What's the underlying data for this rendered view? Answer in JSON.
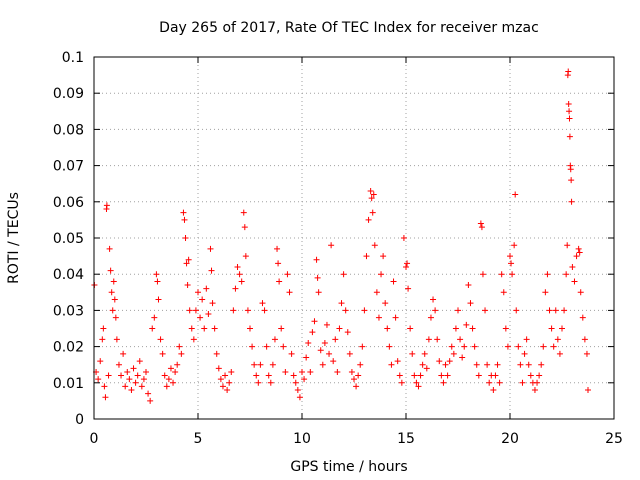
{
  "chart_data": {
    "type": "scatter",
    "title": "Day 265 of 2017, Rate Of TEC Index for receiver mzac",
    "xlabel": "GPS time / hours",
    "ylabel": "ROTI / TECUs",
    "xlim": [
      0,
      25
    ],
    "ylim": [
      0,
      0.1
    ],
    "xticks": [
      0,
      5,
      10,
      15,
      20,
      25
    ],
    "xtick_labels": [
      "0",
      "5",
      "10",
      "15",
      "20",
      "25"
    ],
    "yticks": [
      0,
      0.01,
      0.02,
      0.03,
      0.04,
      0.05,
      0.06,
      0.07,
      0.08,
      0.09,
      0.1
    ],
    "ytick_labels": [
      "0",
      "0.01",
      "0.02",
      "0.03",
      "0.04",
      "0.05",
      "0.06",
      "0.07",
      "0.08",
      "0.09",
      "0.1"
    ],
    "grid": true,
    "marker": "+",
    "color": "#ff0000",
    "series": [
      {
        "points": [
          [
            0.02,
            0.037
          ],
          [
            0.1,
            0.013
          ],
          [
            0.2,
            0.011
          ],
          [
            0.3,
            0.016
          ],
          [
            0.4,
            0.022
          ],
          [
            0.45,
            0.025
          ],
          [
            0.5,
            0.009
          ],
          [
            0.55,
            0.006
          ],
          [
            0.6,
            0.058
          ],
          [
            0.62,
            0.059
          ],
          [
            0.7,
            0.012
          ],
          [
            0.75,
            0.047
          ],
          [
            0.8,
            0.041
          ],
          [
            0.85,
            0.035
          ],
          [
            0.9,
            0.03
          ],
          [
            0.95,
            0.038
          ],
          [
            1.0,
            0.033
          ],
          [
            1.05,
            0.028
          ],
          [
            1.1,
            0.022
          ],
          [
            1.2,
            0.015
          ],
          [
            1.3,
            0.012
          ],
          [
            1.4,
            0.018
          ],
          [
            1.5,
            0.009
          ],
          [
            1.6,
            0.013
          ],
          [
            1.7,
            0.011
          ],
          [
            1.8,
            0.008
          ],
          [
            1.9,
            0.014
          ],
          [
            2.0,
            0.01
          ],
          [
            2.1,
            0.012
          ],
          [
            2.2,
            0.016
          ],
          [
            2.3,
            0.009
          ],
          [
            2.4,
            0.011
          ],
          [
            2.5,
            0.013
          ],
          [
            2.6,
            0.007
          ],
          [
            2.7,
            0.005
          ],
          [
            2.8,
            0.025
          ],
          [
            2.9,
            0.028
          ],
          [
            3.0,
            0.04
          ],
          [
            3.05,
            0.038
          ],
          [
            3.1,
            0.033
          ],
          [
            3.2,
            0.022
          ],
          [
            3.3,
            0.018
          ],
          [
            3.4,
            0.012
          ],
          [
            3.5,
            0.009
          ],
          [
            3.6,
            0.011
          ],
          [
            3.7,
            0.014
          ],
          [
            3.8,
            0.01
          ],
          [
            3.9,
            0.013
          ],
          [
            4.0,
            0.015
          ],
          [
            4.1,
            0.02
          ],
          [
            4.2,
            0.018
          ],
          [
            4.3,
            0.057
          ],
          [
            4.35,
            0.055
          ],
          [
            4.4,
            0.05
          ],
          [
            4.45,
            0.043
          ],
          [
            4.5,
            0.037
          ],
          [
            4.55,
            0.044
          ],
          [
            4.6,
            0.03
          ],
          [
            4.7,
            0.025
          ],
          [
            4.8,
            0.022
          ],
          [
            4.9,
            0.03
          ],
          [
            5.0,
            0.035
          ],
          [
            5.1,
            0.028
          ],
          [
            5.2,
            0.033
          ],
          [
            5.3,
            0.025
          ],
          [
            5.4,
            0.036
          ],
          [
            5.5,
            0.029
          ],
          [
            5.6,
            0.047
          ],
          [
            5.65,
            0.041
          ],
          [
            5.7,
            0.032
          ],
          [
            5.8,
            0.025
          ],
          [
            5.9,
            0.018
          ],
          [
            6.0,
            0.014
          ],
          [
            6.1,
            0.011
          ],
          [
            6.2,
            0.009
          ],
          [
            6.3,
            0.012
          ],
          [
            6.4,
            0.008
          ],
          [
            6.5,
            0.01
          ],
          [
            6.6,
            0.013
          ],
          [
            6.7,
            0.03
          ],
          [
            6.8,
            0.036
          ],
          [
            6.9,
            0.042
          ],
          [
            7.0,
            0.04
          ],
          [
            7.1,
            0.038
          ],
          [
            7.2,
            0.057
          ],
          [
            7.25,
            0.053
          ],
          [
            7.3,
            0.045
          ],
          [
            7.4,
            0.03
          ],
          [
            7.5,
            0.025
          ],
          [
            7.6,
            0.02
          ],
          [
            7.7,
            0.015
          ],
          [
            7.8,
            0.012
          ],
          [
            7.9,
            0.01
          ],
          [
            8.0,
            0.015
          ],
          [
            8.1,
            0.032
          ],
          [
            8.2,
            0.03
          ],
          [
            8.3,
            0.02
          ],
          [
            8.4,
            0.012
          ],
          [
            8.5,
            0.01
          ],
          [
            8.6,
            0.015
          ],
          [
            8.7,
            0.022
          ],
          [
            8.8,
            0.047
          ],
          [
            8.85,
            0.043
          ],
          [
            8.9,
            0.038
          ],
          [
            9.0,
            0.025
          ],
          [
            9.1,
            0.02
          ],
          [
            9.2,
            0.013
          ],
          [
            9.3,
            0.04
          ],
          [
            9.4,
            0.035
          ],
          [
            9.5,
            0.018
          ],
          [
            9.6,
            0.012
          ],
          [
            9.7,
            0.01
          ],
          [
            9.8,
            0.008
          ],
          [
            9.9,
            0.006
          ],
          [
            10.0,
            0.013
          ],
          [
            10.1,
            0.011
          ],
          [
            10.2,
            0.017
          ],
          [
            10.3,
            0.021
          ],
          [
            10.4,
            0.013
          ],
          [
            10.5,
            0.024
          ],
          [
            10.6,
            0.027
          ],
          [
            10.7,
            0.044
          ],
          [
            10.75,
            0.039
          ],
          [
            10.8,
            0.035
          ],
          [
            10.9,
            0.019
          ],
          [
            11.0,
            0.015
          ],
          [
            11.1,
            0.021
          ],
          [
            11.2,
            0.026
          ],
          [
            11.3,
            0.018
          ],
          [
            11.4,
            0.048
          ],
          [
            11.5,
            0.016
          ],
          [
            11.6,
            0.022
          ],
          [
            11.7,
            0.013
          ],
          [
            11.8,
            0.025
          ],
          [
            11.9,
            0.032
          ],
          [
            12.0,
            0.04
          ],
          [
            12.1,
            0.03
          ],
          [
            12.2,
            0.024
          ],
          [
            12.3,
            0.018
          ],
          [
            12.4,
            0.013
          ],
          [
            12.5,
            0.011
          ],
          [
            12.6,
            0.009
          ],
          [
            12.7,
            0.012
          ],
          [
            12.8,
            0.015
          ],
          [
            12.9,
            0.02
          ],
          [
            13.0,
            0.03
          ],
          [
            13.1,
            0.045
          ],
          [
            13.2,
            0.055
          ],
          [
            13.3,
            0.063
          ],
          [
            13.35,
            0.061
          ],
          [
            13.4,
            0.057
          ],
          [
            13.45,
            0.062
          ],
          [
            13.5,
            0.048
          ],
          [
            13.6,
            0.035
          ],
          [
            13.7,
            0.028
          ],
          [
            13.8,
            0.04
          ],
          [
            13.9,
            0.045
          ],
          [
            14.0,
            0.032
          ],
          [
            14.1,
            0.025
          ],
          [
            14.2,
            0.02
          ],
          [
            14.3,
            0.015
          ],
          [
            14.4,
            0.038
          ],
          [
            14.5,
            0.028
          ],
          [
            14.6,
            0.016
          ],
          [
            14.7,
            0.012
          ],
          [
            14.8,
            0.01
          ],
          [
            14.9,
            0.05
          ],
          [
            15.0,
            0.042
          ],
          [
            15.05,
            0.043
          ],
          [
            15.1,
            0.036
          ],
          [
            15.2,
            0.025
          ],
          [
            15.3,
            0.018
          ],
          [
            15.4,
            0.012
          ],
          [
            15.5,
            0.01
          ],
          [
            15.6,
            0.009
          ],
          [
            15.7,
            0.012
          ],
          [
            15.8,
            0.015
          ],
          [
            15.9,
            0.018
          ],
          [
            16.0,
            0.014
          ],
          [
            16.1,
            0.022
          ],
          [
            16.2,
            0.028
          ],
          [
            16.3,
            0.033
          ],
          [
            16.4,
            0.03
          ],
          [
            16.5,
            0.022
          ],
          [
            16.6,
            0.016
          ],
          [
            16.7,
            0.012
          ],
          [
            16.8,
            0.01
          ],
          [
            16.9,
            0.015
          ],
          [
            17.0,
            0.012
          ],
          [
            17.1,
            0.016
          ],
          [
            17.2,
            0.02
          ],
          [
            17.3,
            0.018
          ],
          [
            17.4,
            0.025
          ],
          [
            17.5,
            0.03
          ],
          [
            17.6,
            0.022
          ],
          [
            17.7,
            0.017
          ],
          [
            17.8,
            0.02
          ],
          [
            17.9,
            0.026
          ],
          [
            18.0,
            0.037
          ],
          [
            18.1,
            0.032
          ],
          [
            18.2,
            0.025
          ],
          [
            18.3,
            0.02
          ],
          [
            18.4,
            0.015
          ],
          [
            18.5,
            0.012
          ],
          [
            18.6,
            0.054
          ],
          [
            18.65,
            0.053
          ],
          [
            18.7,
            0.04
          ],
          [
            18.8,
            0.03
          ],
          [
            18.9,
            0.015
          ],
          [
            19.0,
            0.01
          ],
          [
            19.1,
            0.012
          ],
          [
            19.2,
            0.008
          ],
          [
            19.3,
            0.012
          ],
          [
            19.4,
            0.015
          ],
          [
            19.5,
            0.01
          ],
          [
            19.6,
            0.04
          ],
          [
            19.7,
            0.035
          ],
          [
            19.8,
            0.025
          ],
          [
            19.9,
            0.02
          ],
          [
            20.0,
            0.045
          ],
          [
            20.05,
            0.043
          ],
          [
            20.1,
            0.04
          ],
          [
            20.2,
            0.048
          ],
          [
            20.25,
            0.062
          ],
          [
            20.3,
            0.03
          ],
          [
            20.4,
            0.02
          ],
          [
            20.5,
            0.015
          ],
          [
            20.6,
            0.01
          ],
          [
            20.7,
            0.018
          ],
          [
            20.8,
            0.022
          ],
          [
            20.9,
            0.015
          ],
          [
            21.0,
            0.012
          ],
          [
            21.1,
            0.01
          ],
          [
            21.2,
            0.008
          ],
          [
            21.3,
            0.01
          ],
          [
            21.4,
            0.012
          ],
          [
            21.5,
            0.015
          ],
          [
            21.6,
            0.02
          ],
          [
            21.7,
            0.035
          ],
          [
            21.8,
            0.04
          ],
          [
            21.9,
            0.03
          ],
          [
            22.0,
            0.025
          ],
          [
            22.1,
            0.02
          ],
          [
            22.2,
            0.03
          ],
          [
            22.3,
            0.022
          ],
          [
            22.4,
            0.018
          ],
          [
            22.5,
            0.025
          ],
          [
            22.6,
            0.03
          ],
          [
            22.7,
            0.04
          ],
          [
            22.75,
            0.048
          ],
          [
            22.78,
            0.095
          ],
          [
            22.8,
            0.096
          ],
          [
            22.82,
            0.087
          ],
          [
            22.84,
            0.085
          ],
          [
            22.86,
            0.083
          ],
          [
            22.88,
            0.078
          ],
          [
            22.9,
            0.07
          ],
          [
            22.92,
            0.069
          ],
          [
            22.94,
            0.066
          ],
          [
            22.96,
            0.06
          ],
          [
            23.0,
            0.042
          ],
          [
            23.1,
            0.038
          ],
          [
            23.2,
            0.045
          ],
          [
            23.3,
            0.047
          ],
          [
            23.35,
            0.046
          ],
          [
            23.4,
            0.035
          ],
          [
            23.5,
            0.028
          ],
          [
            23.6,
            0.022
          ],
          [
            23.7,
            0.018
          ],
          [
            23.75,
            0.008
          ]
        ]
      }
    ]
  }
}
